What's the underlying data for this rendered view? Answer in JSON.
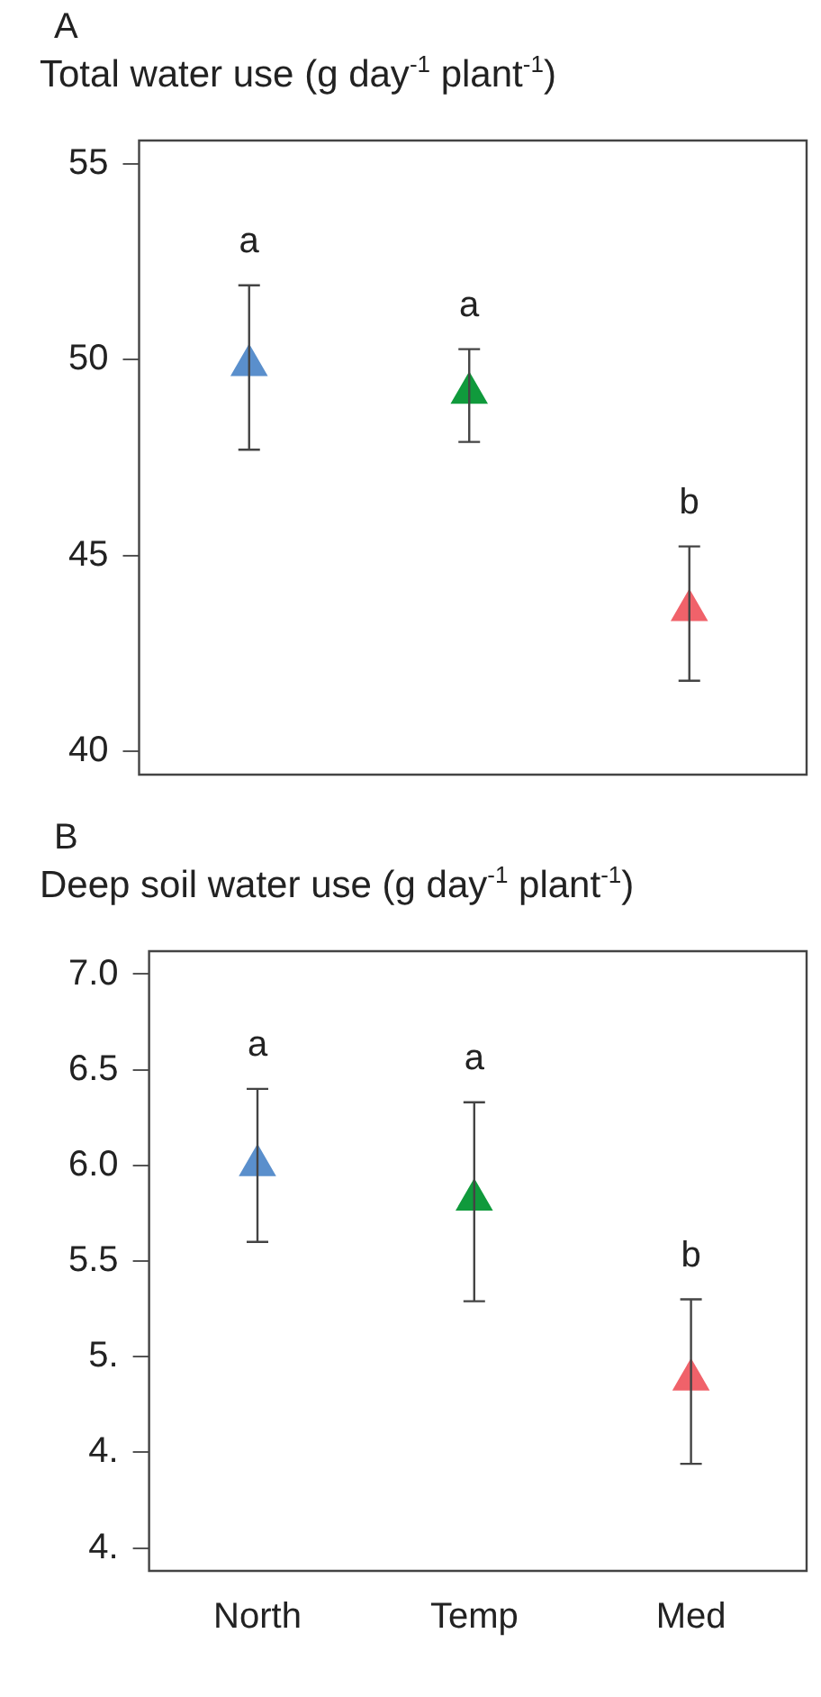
{
  "chart_data": [
    {
      "type": "scatter",
      "title": "A",
      "ylabel": "Total water use (g day$^{-1}$ plant$^{-1}$)",
      "categories": [
        "North",
        "Temp",
        "Med"
      ],
      "values": [
        49.86,
        49.15,
        43.6
      ],
      "colors": [
        "#5a8fcc",
        "#109a3c",
        "#f0626a"
      ],
      "errors": [
        [
          47.7,
          51.9
        ],
        [
          47.9,
          50.27
        ],
        [
          41.8,
          45.23
        ]
      ],
      "ylim": [
        39.4,
        55.6
      ],
      "yticks": [
        40,
        45,
        50,
        55
      ],
      "grid": false,
      "legend": false,
      "marker": "triangle",
      "tick_labels": "y",
      "annotations": [
        {
          "text": "a",
          "x": "North",
          "y": 51.9
        },
        {
          "text": "a",
          "x": "Temp",
          "y": 50.27
        },
        {
          "text": "b",
          "x": "Med",
          "y": 45.23
        }
      ]
    },
    {
      "type": "scatter",
      "title": "B",
      "ylabel": "Deep soil water use (g day$^{-1}$ plant$^{-1}$)",
      "categories": [
        "North",
        "Temp",
        "Med"
      ],
      "values": [
        6.0,
        5.82,
        4.88
      ],
      "colors": [
        "#5a8fcc",
        "#109a3c",
        "#f0626a"
      ],
      "errors": [
        [
          5.6,
          6.4
        ],
        [
          5.29,
          6.33
        ],
        [
          4.44,
          5.3
        ]
      ],
      "ylim": [
        3.88,
        7.12
      ],
      "yticks": [
        {
          "value": 4.0,
          "label": "4."
        },
        {
          "value": 4.5,
          "label": "4."
        },
        {
          "value": 5.0,
          "label": "5."
        },
        5.5,
        {
          "value": 6.0,
          "label": "6.0"
        },
        6.5,
        {
          "value": 7.0,
          "label": "7.0"
        }
      ],
      "grid": false,
      "legend": false,
      "marker": "triangle",
      "annotations": [
        {
          "text": "a",
          "x": "North",
          "y": 6.4
        },
        {
          "text": "a",
          "x": "Temp",
          "y": 6.33
        },
        {
          "text": "b",
          "x": "Med",
          "y": 5.3
        }
      ]
    }
  ]
}
